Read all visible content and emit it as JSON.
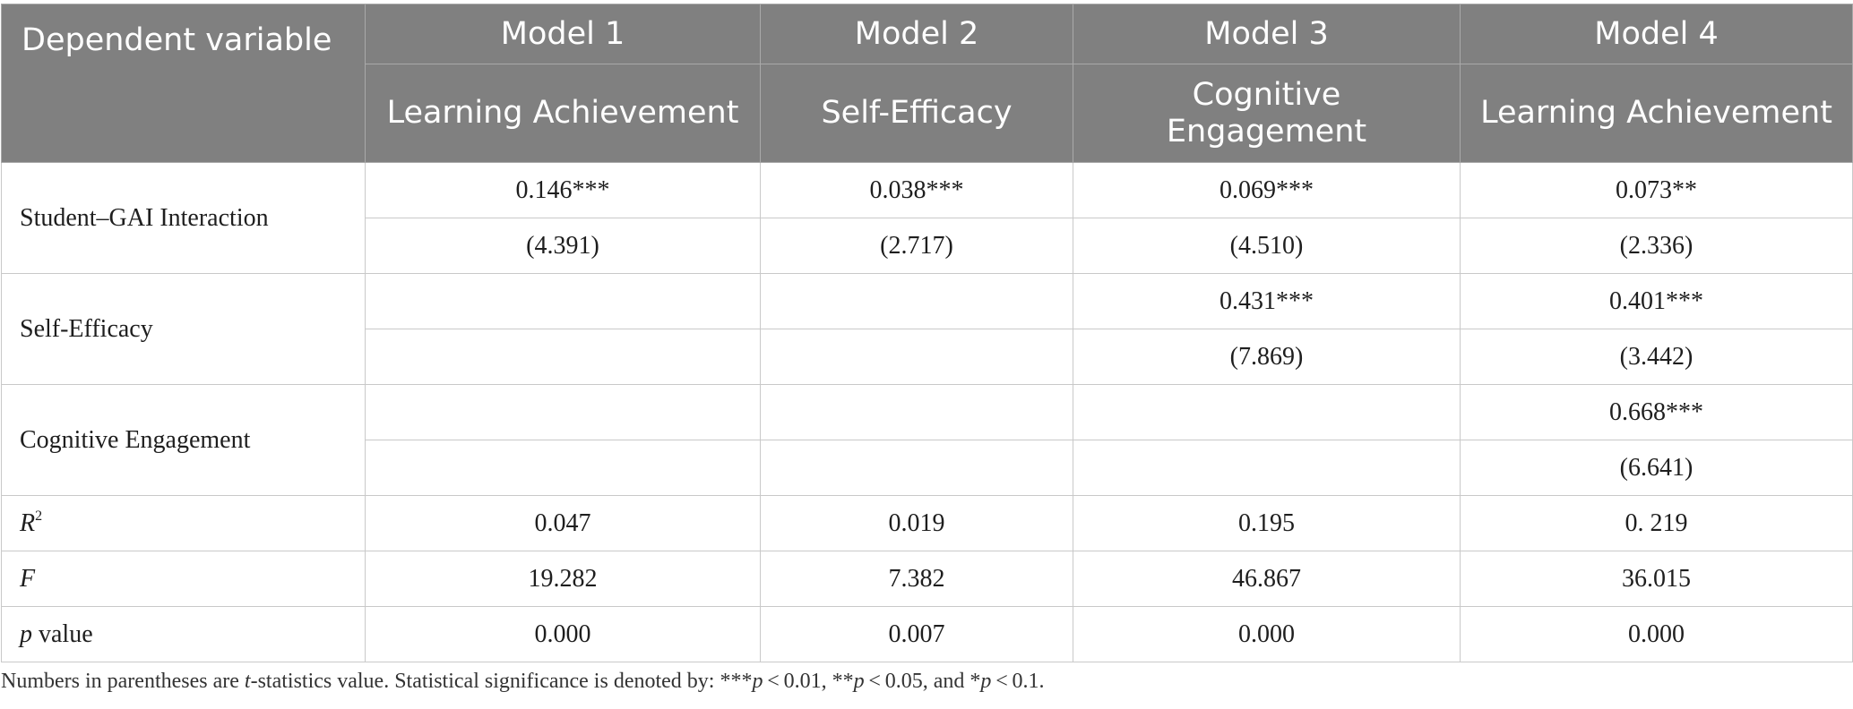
{
  "header": {
    "dependent_label": "Dependent variable",
    "models": [
      "Model 1",
      "Model 2",
      "Model 3",
      "Model 4"
    ],
    "dependents": [
      "Learning Achievement",
      "Self-Efficacy",
      "Cognitive Engagement",
      "Learning Achievement"
    ]
  },
  "rows": [
    {
      "label": "Student–GAI Interaction",
      "coef": [
        "0.146***",
        "0.038***",
        "0.069***",
        "0.073**"
      ],
      "tstat": [
        "(4.391)",
        "(2.717)",
        "(4.510)",
        "(2.336)"
      ]
    },
    {
      "label": "Self-Efficacy",
      "coef": [
        "",
        "",
        "0.431***",
        "0.401***"
      ],
      "tstat": [
        "",
        "",
        "(7.869)",
        "(3.442)"
      ]
    },
    {
      "label": "Cognitive Engagement",
      "coef": [
        "",
        "",
        "",
        "0.668***"
      ],
      "tstat": [
        "",
        "",
        "",
        "(6.641)"
      ]
    }
  ],
  "stats": {
    "r2": {
      "label": "R",
      "sup": "2",
      "values": [
        "0.047",
        "0.019",
        "0.195",
        "0. 219"
      ]
    },
    "f": {
      "label": "F",
      "values": [
        "19.282",
        "7.382",
        "46.867",
        "36.015"
      ]
    },
    "p": {
      "label_italic": "p",
      "label_rest": " value",
      "values": [
        "0.000",
        "0.007",
        "0.000",
        "0.000"
      ]
    }
  },
  "note": {
    "part1": "Numbers in parentheses are ",
    "t": "t",
    "part2": "-statistics value. Statistical significance is denoted by: ***",
    "p1": "p",
    "part3": " < 0.01, **",
    "p2": "p",
    "part4": " < 0.05, and *",
    "p3": "p",
    "part5": " < 0.1."
  }
}
